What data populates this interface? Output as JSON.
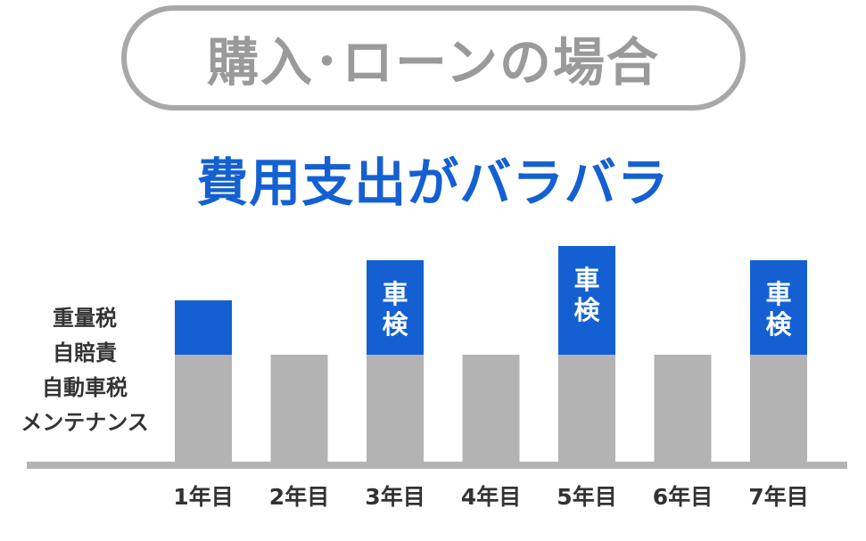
{
  "header": {
    "pill_text": "購入･ローンの場合",
    "headline": "費用支出がバラバラ"
  },
  "legend": {
    "items": [
      "重量税",
      "自賠責",
      "自動車税",
      "メンテナンス"
    ]
  },
  "colors": {
    "base": "#b3b3b3",
    "extra": "#1460d2",
    "axis": "#b3b3b3",
    "headline": "#1460d2",
    "pill": "#a8a8a8"
  },
  "chart_data": {
    "type": "bar",
    "stacked": true,
    "categories": [
      "1年目",
      "2年目",
      "3年目",
      "4年目",
      "5年目",
      "6年目",
      "7年目"
    ],
    "series": [
      {
        "values": [
          1.0,
          1.0,
          1.0,
          1.0,
          1.0,
          1.0,
          1.0
        ]
      },
      {
        "values": [
          0.5,
          0,
          0.87,
          0,
          1.0,
          0,
          0.87
        ]
      }
    ],
    "segment_labels": [
      "",
      "",
      "車検",
      "",
      "車検",
      "",
      "車検"
    ],
    "grid": false
  }
}
